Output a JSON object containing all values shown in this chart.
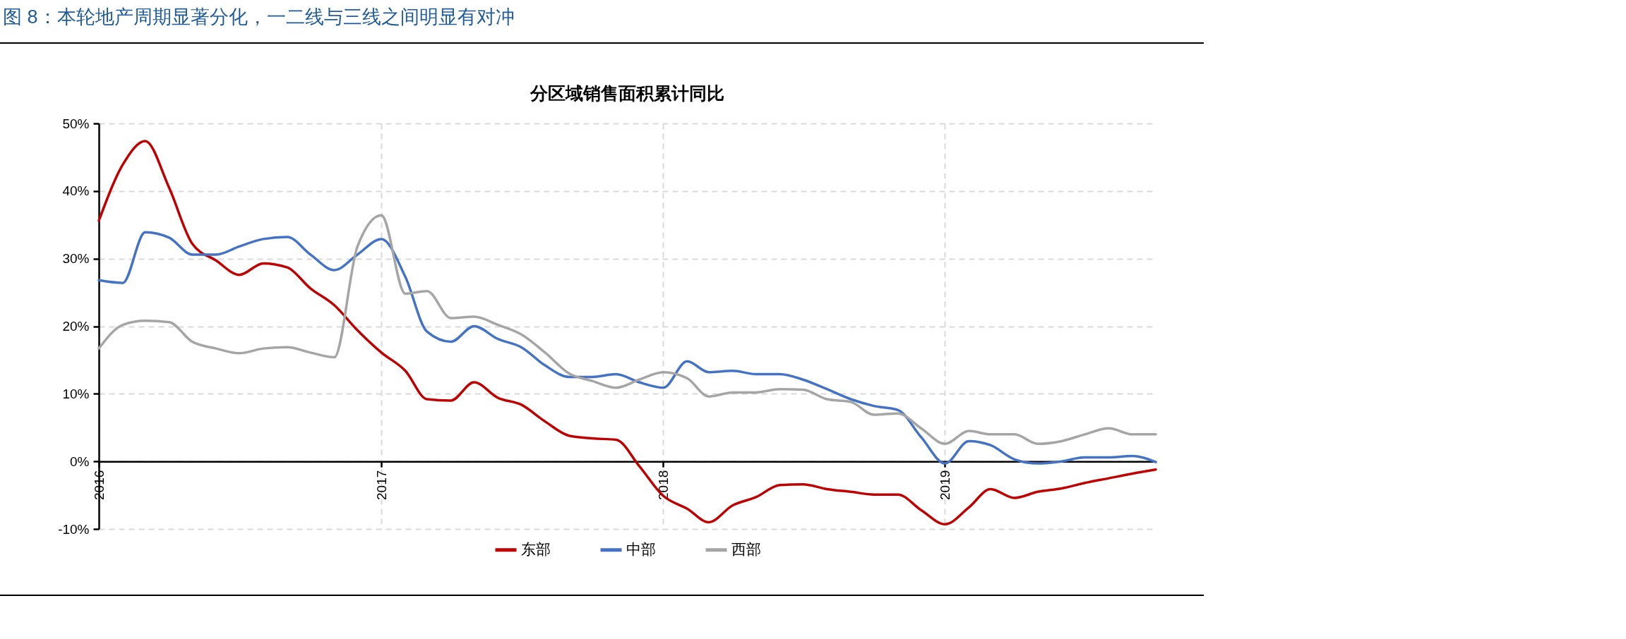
{
  "chart_data": {
    "type": "line",
    "title": "图 8：本轮地产周期显著分化，一二线与三线之间明显有对冲",
    "subtitle": "分区域销售面积累计同比",
    "x": [
      "2016-01",
      "2016-02",
      "2016-03",
      "2016-04",
      "2016-05",
      "2016-06",
      "2016-07",
      "2016-08",
      "2016-09",
      "2016-10",
      "2016-11",
      "2016-12",
      "2017-01",
      "2017-02",
      "2017-03",
      "2017-04",
      "2017-05",
      "2017-06",
      "2017-07",
      "2017-08",
      "2017-09",
      "2017-10",
      "2017-11",
      "2017-12",
      "2018-01",
      "2018-02",
      "2018-03",
      "2018-04",
      "2018-05",
      "2018-06",
      "2018-07",
      "2018-08",
      "2018-09",
      "2018-10",
      "2018-11",
      "2018-12",
      "2019-01",
      "2019-02",
      "2019-03",
      "2019-04",
      "2019-05",
      "2019-06",
      "2019-07",
      "2019-08",
      "2019-09",
      "2019-10"
    ],
    "series": [
      {
        "name": "东部",
        "color": "#c00000",
        "values": [
          35.6,
          43.9,
          47.4,
          40.5,
          32.2,
          29.7,
          27.6,
          29.3,
          28.7,
          25.6,
          23.1,
          19.4,
          16.1,
          13.4,
          9.2,
          9.0,
          11.7,
          9.4,
          8.4,
          5.9,
          3.8,
          3.4,
          3.2,
          -0.7,
          -5.1,
          -7.0,
          -9.0,
          -6.5,
          -5.3,
          -3.5,
          -3.4,
          -4.1,
          -4.5,
          -4.9,
          -4.9,
          -7.2,
          -9.3,
          -6.8,
          -4.1,
          -5.4,
          -4.5,
          -4.0,
          -3.2,
          -2.5,
          -1.8,
          -1.2
        ]
      },
      {
        "name": "中部",
        "color": "#4472c4",
        "values": [
          26.8,
          26.4,
          33.9,
          33.1,
          30.6,
          30.6,
          31.8,
          32.9,
          33.2,
          30.6,
          28.3,
          30.6,
          32.9,
          27.3,
          19.2,
          17.7,
          20.0,
          18.1,
          16.9,
          14.2,
          12.5,
          12.5,
          12.9,
          11.7,
          10.9,
          14.8,
          13.2,
          13.4,
          12.9,
          12.9,
          12.1,
          10.7,
          9.2,
          8.2,
          7.6,
          3.6,
          -0.3,
          3.0,
          2.4,
          0.3,
          -0.3,
          0.0,
          0.6,
          0.6,
          0.8,
          -0.1
        ]
      },
      {
        "name": "西部",
        "color": "#a5a5a5",
        "values": [
          16.7,
          20.2,
          20.8,
          20.6,
          17.7,
          16.7,
          16.0,
          16.7,
          16.9,
          16.1,
          15.4,
          31.8,
          36.4,
          24.8,
          25.2,
          21.2,
          21.4,
          20.2,
          18.8,
          16.1,
          13.0,
          11.9,
          10.9,
          12.1,
          13.2,
          12.3,
          9.6,
          10.2,
          10.2,
          10.7,
          10.6,
          9.2,
          8.8,
          6.9,
          7.1,
          4.9,
          2.6,
          4.5,
          4.0,
          4.0,
          2.6,
          3.0,
          4.0,
          4.9,
          4.0,
          4.0
        ]
      }
    ],
    "xlim": [
      "2016-01",
      "2019-10"
    ],
    "xticks": [
      {
        "value": "2016-01",
        "label": "2016"
      },
      {
        "value": "2017-01",
        "label": "2017"
      },
      {
        "value": "2018-01",
        "label": "2018"
      },
      {
        "value": "2019-01",
        "label": "2019"
      }
    ],
    "ylim": [
      -10,
      50
    ],
    "yticks": [
      {
        "value": -10,
        "label": "-10%"
      },
      {
        "value": 0,
        "label": "0%"
      },
      {
        "value": 10,
        "label": "10%"
      },
      {
        "value": 20,
        "label": "20%"
      },
      {
        "value": 30,
        "label": "30%"
      },
      {
        "value": 40,
        "label": "40%"
      },
      {
        "value": 50,
        "label": "50%"
      }
    ],
    "grid": true,
    "legend": "bottom",
    "marker": "none",
    "line_style": "solid"
  }
}
